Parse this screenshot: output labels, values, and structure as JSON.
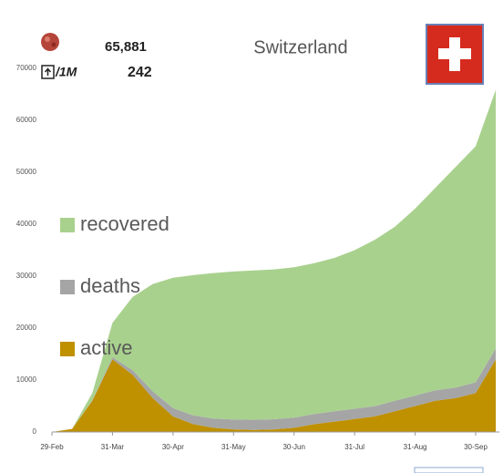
{
  "chart_data": {
    "type": "stacked_area",
    "title": "Switzerland",
    "total_cases": "65,881",
    "per_million_label": "/1M",
    "per_million_value": "242",
    "categories": [
      "29-Feb",
      null,
      null,
      "31-Mar",
      null,
      null,
      "30-Apr",
      null,
      null,
      "31-May",
      null,
      null,
      "30-Jun",
      null,
      null,
      "31-Jul",
      null,
      null,
      "31-Aug",
      null,
      null,
      "30-Sep",
      null
    ],
    "series": [
      {
        "name": "active",
        "color": "#bf9000",
        "values": [
          0,
          600,
          6000,
          14000,
          11000,
          6500,
          3000,
          1500,
          800,
          500,
          400,
          500,
          800,
          1500,
          2000,
          2500,
          3000,
          4000,
          5000,
          6000,
          6500,
          7500,
          14000
        ]
      },
      {
        "name": "deaths",
        "color": "#a5a5a5",
        "values": [
          0,
          0,
          100,
          400,
          900,
          1300,
          1600,
          1700,
          1800,
          1900,
          1950,
          1950,
          1960,
          1970,
          1975,
          1980,
          1990,
          2000,
          2010,
          2030,
          2050,
          2070,
          2100
        ]
      },
      {
        "name": "recovered",
        "color": "#a9d18e",
        "values": [
          0,
          0,
          1400,
          6600,
          14100,
          20700,
          25100,
          27000,
          28000,
          28500,
          28750,
          28850,
          28940,
          29030,
          29525,
          30520,
          32010,
          33500,
          35990,
          38970,
          42450,
          45430,
          49781
        ]
      }
    ],
    "ylim": [
      0,
      70000
    ],
    "yticks": [
      0,
      10000,
      20000,
      30000,
      40000,
      50000,
      60000,
      70000
    ],
    "legend": "left"
  }
}
